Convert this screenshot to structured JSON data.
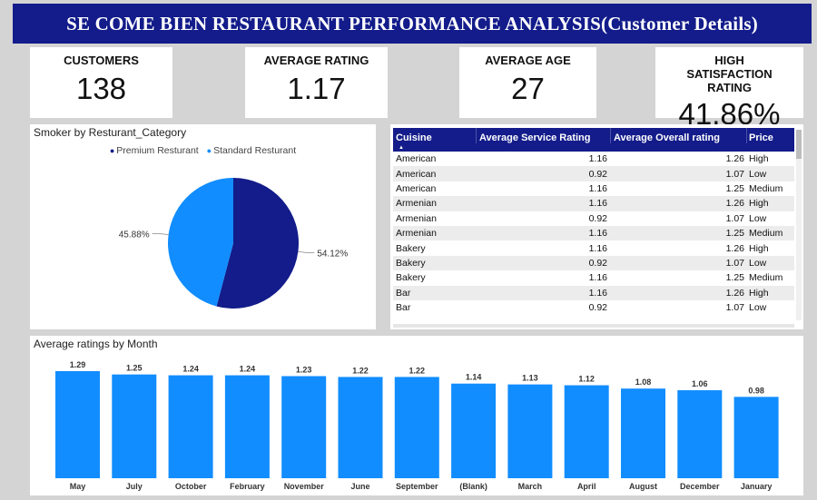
{
  "header": {
    "title": "SE COME BIEN RESTAURANT PERFORMANCE ANALYSIS(Customer Details)"
  },
  "kpis": [
    {
      "label": "CUSTOMERS",
      "value": "138"
    },
    {
      "label": "AVERAGE RATING",
      "value": "1.17"
    },
    {
      "label": "AVERAGE AGE",
      "value": "27"
    },
    {
      "label": "HIGH SATISFACTION RATING",
      "value": "41.86%"
    }
  ],
  "colors": {
    "dark": "#131c8a",
    "light": "#118dff",
    "banner": "#131c8a"
  },
  "table": {
    "columns": [
      "Cuisine",
      "Average Service Rating",
      "Average Overall rating",
      "Price"
    ],
    "rows": [
      [
        "American",
        "1.16",
        "1.26",
        "High"
      ],
      [
        "American",
        "0.92",
        "1.07",
        "Low"
      ],
      [
        "American",
        "1.16",
        "1.25",
        "Medium"
      ],
      [
        "Armenian",
        "1.16",
        "1.26",
        "High"
      ],
      [
        "Armenian",
        "0.92",
        "1.07",
        "Low"
      ],
      [
        "Armenian",
        "1.16",
        "1.25",
        "Medium"
      ],
      [
        "Bakery",
        "1.16",
        "1.26",
        "High"
      ],
      [
        "Bakery",
        "0.92",
        "1.07",
        "Low"
      ],
      [
        "Bakery",
        "1.16",
        "1.25",
        "Medium"
      ],
      [
        "Bar",
        "1.16",
        "1.26",
        "High"
      ],
      [
        "Bar",
        "0.92",
        "1.07",
        "Low"
      ]
    ]
  },
  "chart_data": [
    {
      "type": "pie",
      "title": "Smoker by Resturant_Category",
      "legend": [
        "Premium Resturant",
        "Standard Resturant"
      ],
      "slices": [
        {
          "name": "Premium Resturant",
          "value": 54.12,
          "label": "54.12%"
        },
        {
          "name": "Standard Resturant",
          "value": 45.88,
          "label": "45.88%"
        }
      ]
    },
    {
      "type": "bar",
      "title": "Average ratings by Month",
      "categories": [
        "May",
        "July",
        "October",
        "February",
        "November",
        "June",
        "September",
        "(Blank)",
        "March",
        "April",
        "August",
        "December",
        "January"
      ],
      "values": [
        1.29,
        1.25,
        1.24,
        1.24,
        1.23,
        1.22,
        1.22,
        1.14,
        1.13,
        1.12,
        1.08,
        1.06,
        0.98
      ],
      "labels": [
        "1.29",
        "1.25",
        "1.24",
        "1.24",
        "1.23",
        "1.22",
        "1.22",
        "1.14",
        "1.13",
        "1.12",
        "1.08",
        "1.06",
        "0.98"
      ],
      "ylim": [
        0,
        1.29
      ]
    }
  ]
}
